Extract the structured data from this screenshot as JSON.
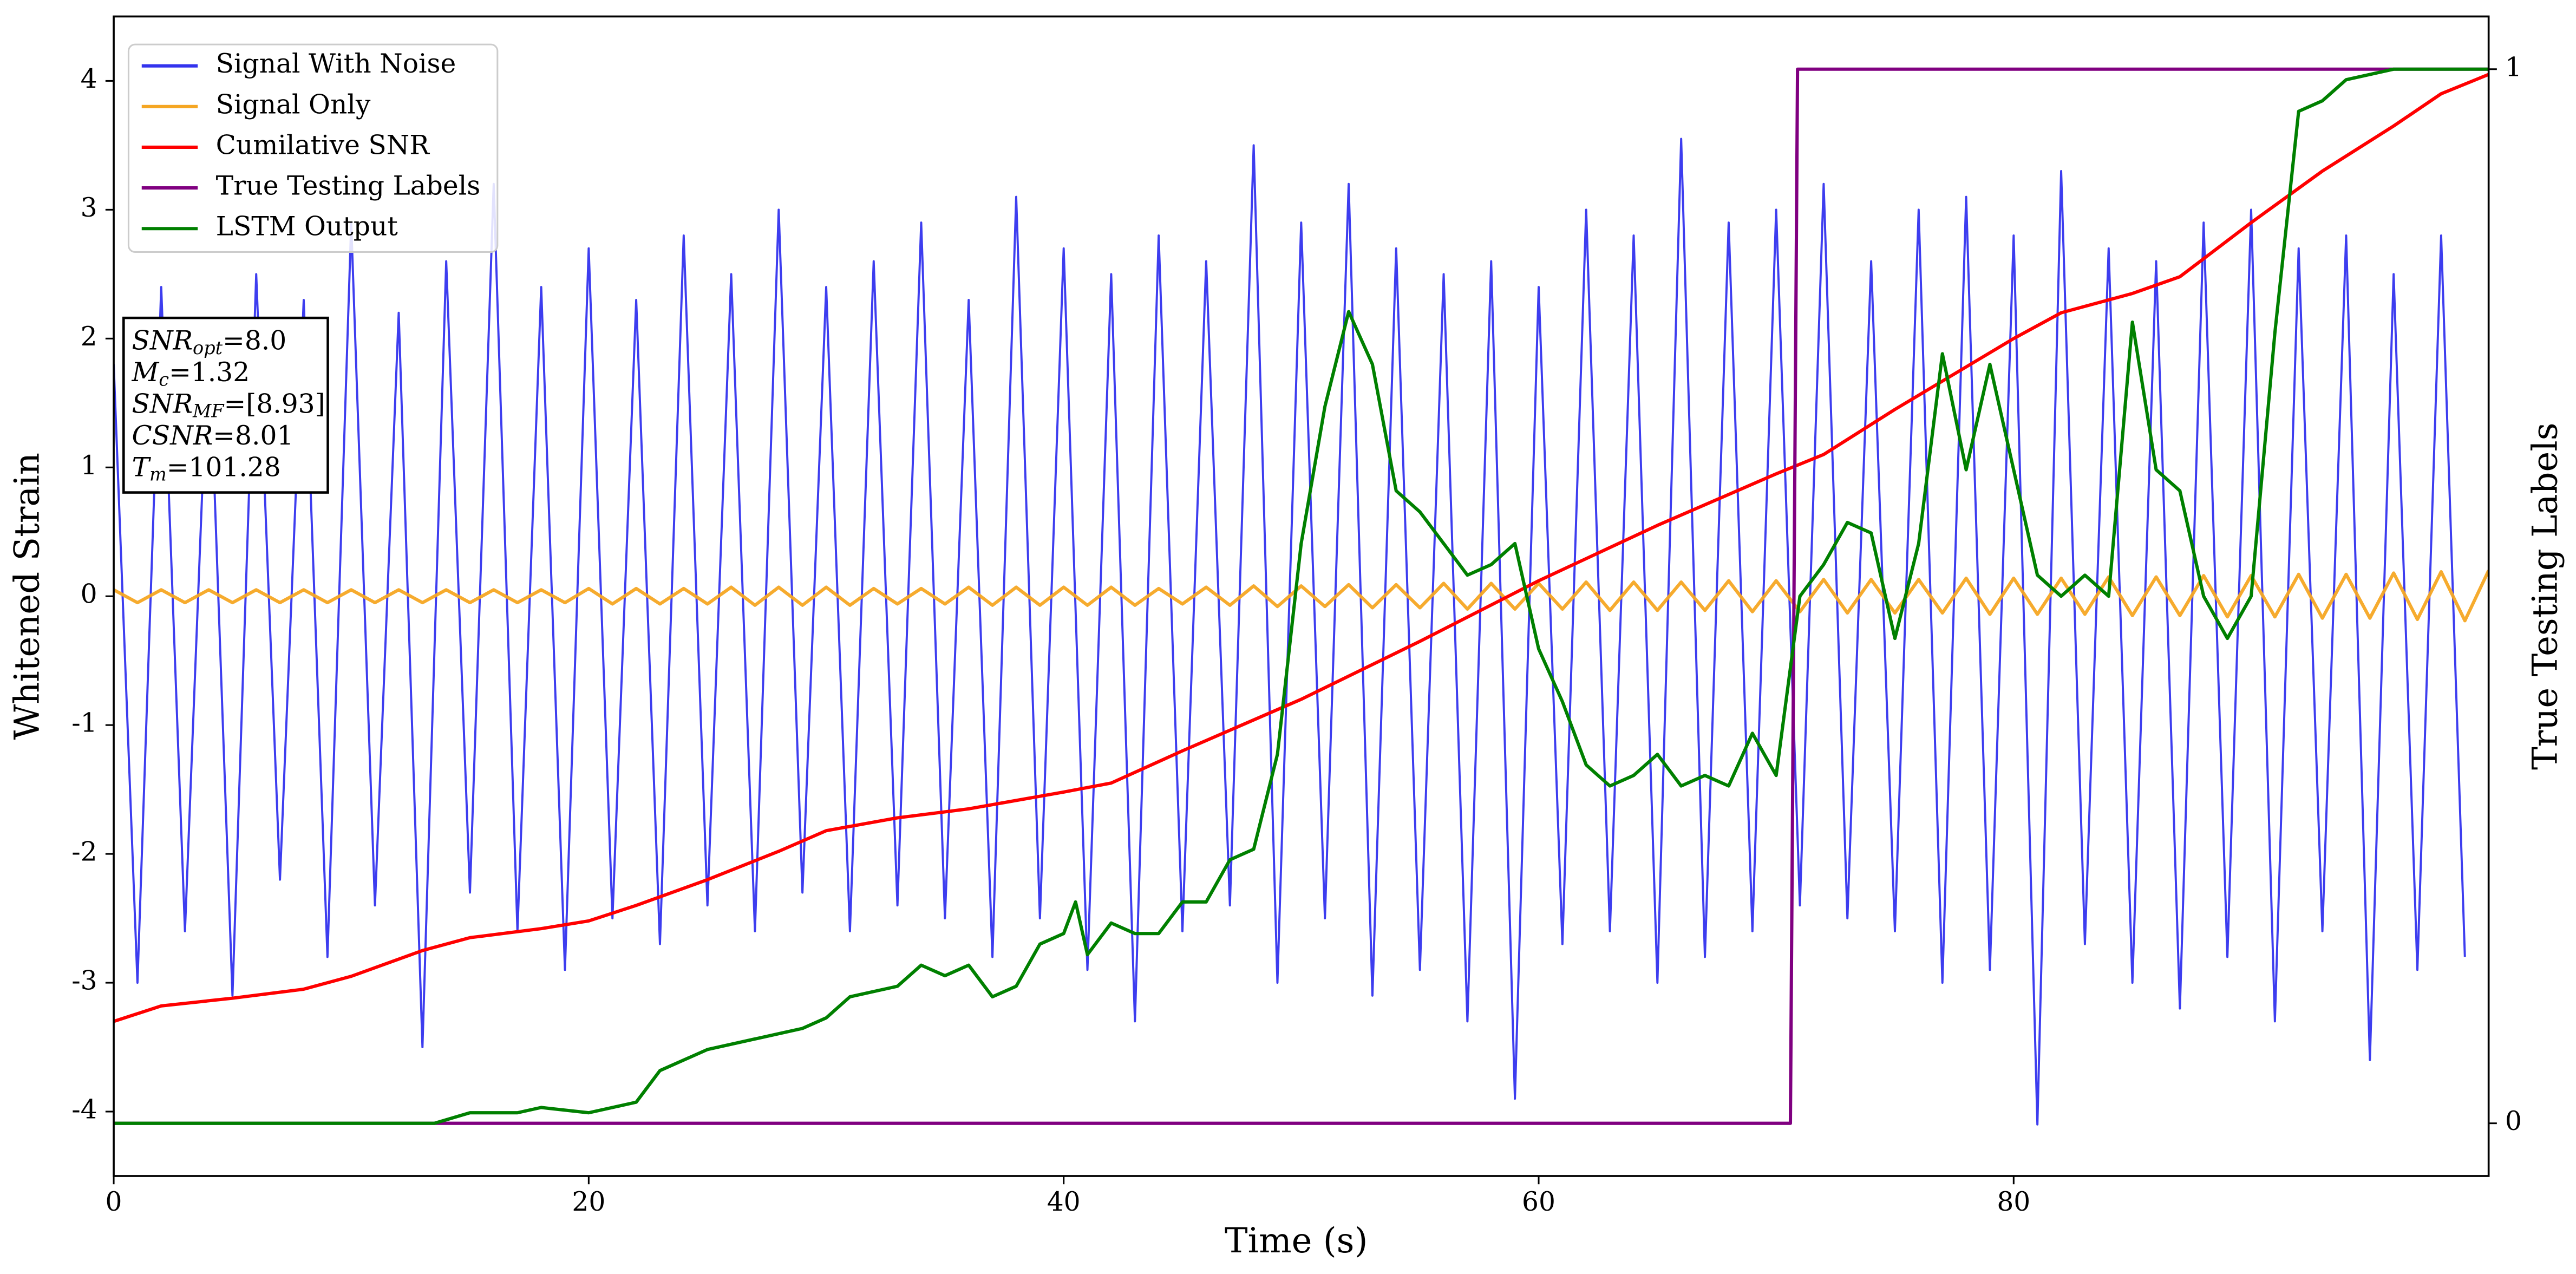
{
  "chart_data": {
    "type": "line",
    "xlabel": "Time (s)",
    "ylabel": "Whitened Strain",
    "y2label": "True Testing Labels",
    "xlim": [
      0,
      100
    ],
    "xticks": [
      0,
      20,
      40,
      60,
      80
    ],
    "ylim": [
      -4.5,
      4.5
    ],
    "yticks": [
      -4,
      -3,
      -2,
      -1,
      0,
      1,
      2,
      3,
      4
    ],
    "y2lim": [
      -0.05,
      1.05
    ],
    "y2ticks": [
      0,
      1
    ],
    "grid": false,
    "legend": "upper left",
    "annotation_lines": [
      {
        "symbol": "SNR",
        "subscript": "opt",
        "text": "=8.0"
      },
      {
        "symbol": "M",
        "subscript": "c",
        "text": "=1.32"
      },
      {
        "symbol": "SNR",
        "subscript": "MF",
        "text": "=[8.93]"
      },
      {
        "symbol": "CSNR",
        "text": "=8.01"
      },
      {
        "symbol": "T",
        "subscript": "m",
        "text": "=101.28"
      }
    ],
    "series": [
      {
        "name": "Signal With Noise",
        "color": "#3333ee",
        "x": [
          0,
          1,
          2,
          3,
          4,
          5,
          6,
          7,
          8,
          9,
          10,
          11,
          12,
          13,
          14,
          15,
          16,
          17,
          18,
          19,
          20,
          21,
          22,
          23,
          24,
          25,
          26,
          27,
          28,
          29,
          30,
          31,
          32,
          33,
          34,
          35,
          36,
          37,
          38,
          39,
          40,
          41,
          42,
          43,
          44,
          45,
          46,
          47,
          48,
          49,
          50,
          51,
          52,
          53,
          54,
          55,
          56,
          57,
          58,
          59,
          60,
          61,
          62,
          63,
          64,
          65,
          66,
          67,
          68,
          69,
          70,
          71,
          72,
          73,
          74,
          75,
          76,
          77,
          78,
          79,
          80,
          81,
          82,
          83,
          84,
          85,
          86,
          87,
          88,
          89,
          90,
          91,
          92,
          93,
          94,
          95,
          96,
          97,
          98,
          99
        ],
        "values": [
          1.8,
          -3.0,
          2.4,
          -2.6,
          2.1,
          -3.1,
          2.5,
          -2.2,
          2.3,
          -2.8,
          2.9,
          -2.4,
          2.2,
          -3.5,
          2.6,
          -2.3,
          3.2,
          -2.6,
          2.4,
          -2.9,
          2.7,
          -2.5,
          2.3,
          -2.7,
          2.8,
          -2.4,
          2.5,
          -2.6,
          3.0,
          -2.3,
          2.4,
          -2.6,
          2.6,
          -2.4,
          2.9,
          -2.5,
          2.3,
          -2.8,
          3.1,
          -2.5,
          2.7,
          -2.9,
          2.5,
          -3.3,
          2.8,
          -2.6,
          2.6,
          -2.4,
          3.5,
          -3.0,
          2.9,
          -2.5,
          3.2,
          -3.1,
          2.7,
          -2.9,
          2.5,
          -3.3,
          2.6,
          -3.9,
          2.4,
          -2.7,
          3.0,
          -2.6,
          2.8,
          -3.0,
          3.55,
          -2.8,
          2.9,
          -2.6,
          3.0,
          -2.4,
          3.2,
          -2.5,
          2.6,
          -2.6,
          3.0,
          -3.0,
          3.1,
          -2.9,
          2.8,
          -4.1,
          3.3,
          -2.7,
          2.7,
          -3.0,
          2.6,
          -3.2,
          2.9,
          -2.8,
          3.0,
          -3.3,
          2.7,
          -2.6,
          2.8,
          -3.6,
          2.5,
          -2.9,
          2.8,
          -2.8
        ]
      },
      {
        "name": "Signal Only",
        "color": "#f5a623",
        "x": [
          0,
          1,
          2,
          3,
          4,
          5,
          6,
          7,
          8,
          9,
          10,
          11,
          12,
          13,
          14,
          15,
          16,
          17,
          18,
          19,
          20,
          21,
          22,
          23,
          24,
          25,
          26,
          27,
          28,
          29,
          30,
          31,
          32,
          33,
          34,
          35,
          36,
          37,
          38,
          39,
          40,
          41,
          42,
          43,
          44,
          45,
          46,
          47,
          48,
          49,
          50,
          51,
          52,
          53,
          54,
          55,
          56,
          57,
          58,
          59,
          60,
          61,
          62,
          63,
          64,
          65,
          66,
          67,
          68,
          69,
          70,
          71,
          72,
          73,
          74,
          75,
          76,
          77,
          78,
          79,
          80,
          81,
          82,
          83,
          84,
          85,
          86,
          87,
          88,
          89,
          90,
          91,
          92,
          93,
          94,
          95,
          96,
          97,
          98,
          99,
          100
        ],
        "values": [
          0.05,
          -0.05,
          0.05,
          -0.05,
          0.05,
          -0.05,
          0.05,
          -0.05,
          0.05,
          -0.05,
          0.05,
          -0.05,
          0.05,
          -0.05,
          0.05,
          -0.05,
          0.05,
          -0.05,
          0.05,
          -0.05,
          0.06,
          -0.06,
          0.06,
          -0.06,
          0.06,
          -0.06,
          0.07,
          -0.07,
          0.07,
          -0.07,
          0.07,
          -0.07,
          0.06,
          -0.06,
          0.06,
          -0.06,
          0.07,
          -0.07,
          0.07,
          -0.07,
          0.07,
          -0.07,
          0.07,
          -0.07,
          0.06,
          -0.06,
          0.07,
          -0.07,
          0.08,
          -0.08,
          0.08,
          -0.08,
          0.09,
          -0.09,
          0.09,
          -0.09,
          0.1,
          -0.1,
          0.1,
          -0.1,
          0.1,
          -0.1,
          0.11,
          -0.11,
          0.11,
          -0.11,
          0.11,
          -0.11,
          0.12,
          -0.12,
          0.12,
          -0.12,
          0.13,
          -0.13,
          0.13,
          -0.13,
          0.13,
          -0.13,
          0.14,
          -0.14,
          0.14,
          -0.14,
          0.14,
          -0.14,
          0.15,
          -0.15,
          0.15,
          -0.15,
          0.16,
          -0.16,
          0.16,
          -0.16,
          0.17,
          -0.17,
          0.17,
          -0.17,
          0.18,
          -0.18,
          0.19,
          -0.19,
          0.2
        ]
      },
      {
        "name": "Cumilative SNR",
        "color": "#ff0000",
        "x": [
          0,
          2,
          5,
          8,
          10,
          13,
          15,
          18,
          20,
          22,
          25,
          28,
          30,
          33,
          36,
          40,
          42,
          45,
          50,
          55,
          60,
          65,
          70,
          72,
          75,
          80,
          82,
          85,
          87,
          90,
          93,
          96,
          98,
          100
        ],
        "values": [
          -3.3,
          -3.18,
          -3.12,
          -3.05,
          -2.95,
          -2.75,
          -2.65,
          -2.58,
          -2.52,
          -2.4,
          -2.2,
          -1.98,
          -1.82,
          -1.72,
          -1.65,
          -1.52,
          -1.45,
          -1.2,
          -0.8,
          -0.35,
          0.12,
          0.55,
          0.95,
          1.1,
          1.45,
          2.0,
          2.2,
          2.35,
          2.48,
          2.9,
          3.3,
          3.65,
          3.9,
          4.05
        ]
      },
      {
        "name": "True Testing Labels",
        "color": "#800080",
        "axis": "y2",
        "x": [
          0,
          70.6,
          70.9,
          100
        ],
        "values": [
          0,
          0,
          1,
          1
        ]
      },
      {
        "name": "LSTM Output",
        "color": "#008000",
        "axis": "y2",
        "x": [
          0,
          13.5,
          15,
          17,
          18,
          20,
          22,
          23,
          25,
          27,
          29,
          30,
          31,
          33,
          34,
          35,
          36,
          37,
          38,
          39,
          40,
          40.5,
          41,
          42,
          43,
          44,
          45,
          46,
          47,
          48,
          49,
          50,
          51,
          52,
          53,
          54,
          55,
          56,
          57,
          58,
          59,
          60,
          61,
          62,
          63,
          64,
          65,
          66,
          67,
          68,
          69,
          70,
          71,
          72,
          73,
          74,
          75,
          76,
          77,
          78,
          79,
          80,
          81,
          82,
          83,
          84,
          85,
          86,
          87,
          88,
          89,
          90,
          91,
          92,
          93,
          94,
          96,
          100
        ],
        "values": [
          0,
          0,
          0.01,
          0.01,
          0.015,
          0.01,
          0.02,
          0.05,
          0.07,
          0.08,
          0.09,
          0.1,
          0.12,
          0.13,
          0.15,
          0.14,
          0.15,
          0.12,
          0.13,
          0.17,
          0.18,
          0.21,
          0.16,
          0.19,
          0.18,
          0.18,
          0.21,
          0.21,
          0.25,
          0.26,
          0.35,
          0.55,
          0.68,
          0.77,
          0.72,
          0.6,
          0.58,
          0.55,
          0.52,
          0.53,
          0.55,
          0.45,
          0.4,
          0.34,
          0.32,
          0.33,
          0.35,
          0.32,
          0.33,
          0.32,
          0.37,
          0.33,
          0.5,
          0.53,
          0.57,
          0.56,
          0.46,
          0.55,
          0.73,
          0.62,
          0.72,
          0.62,
          0.52,
          0.5,
          0.52,
          0.5,
          0.76,
          0.62,
          0.6,
          0.5,
          0.46,
          0.5,
          0.75,
          0.96,
          0.97,
          0.99,
          1.0,
          1.0
        ]
      }
    ]
  }
}
